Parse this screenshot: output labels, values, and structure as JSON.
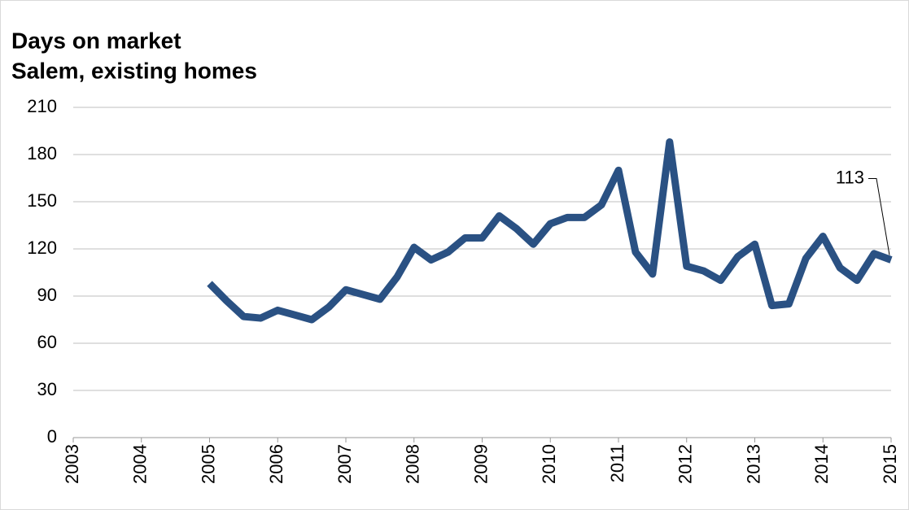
{
  "chart_data": {
    "type": "line",
    "title": "Days on market",
    "subtitle": "Salem, existing homes",
    "x": [
      2005,
      2005.25,
      2005.5,
      2005.75,
      2006,
      2006.25,
      2006.5,
      2006.75,
      2007,
      2007.25,
      2007.5,
      2007.75,
      2008,
      2008.25,
      2008.5,
      2008.75,
      2009,
      2009.25,
      2009.5,
      2009.75,
      2010,
      2010.25,
      2010.5,
      2010.75,
      2011,
      2011.25,
      2011.5,
      2011.75,
      2012,
      2012.25,
      2012.5,
      2012.75,
      2013,
      2013.25,
      2013.5,
      2013.75,
      2014,
      2014.25,
      2014.5,
      2014.75,
      2015
    ],
    "values": [
      98,
      87,
      77,
      76,
      81,
      78,
      75,
      83,
      94,
      91,
      88,
      102,
      121,
      113,
      118,
      127,
      127,
      141,
      133,
      123,
      136,
      140,
      140,
      148,
      170,
      118,
      104,
      188,
      109,
      106,
      100,
      115,
      123,
      84,
      85,
      114,
      128,
      108,
      100,
      117,
      113
    ],
    "color": "#2a5183",
    "xlim": [
      2003,
      2015
    ],
    "xticks": [
      2003,
      2004,
      2005,
      2006,
      2007,
      2008,
      2009,
      2010,
      2011,
      2012,
      2013,
      2014,
      2015
    ],
    "ylim": [
      0,
      210
    ],
    "yticks": [
      0,
      30,
      60,
      90,
      120,
      150,
      180,
      210
    ],
    "grid": true,
    "data_labels": "last"
  }
}
